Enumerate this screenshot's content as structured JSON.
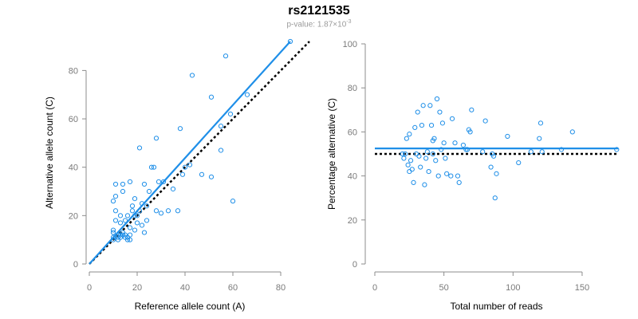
{
  "title": "rs2121535",
  "subtitle": {
    "prefix": "p-value: 1.87×10",
    "exponent": "-3"
  },
  "colors": {
    "fit_line": "#1f8fe8",
    "points": "#1f8fe8",
    "expected_line": "#000000",
    "axis": "#8c8c8c",
    "tick_label": "#7a7a7a"
  },
  "chart_data": [
    {
      "type": "scatter",
      "xlabel": "Reference allele count (A)",
      "ylabel": "Alternative allele count (C)",
      "xlim": [
        0,
        84
      ],
      "ylim": [
        0,
        92
      ],
      "xticks": [
        0,
        20,
        40,
        60,
        80
      ],
      "yticks": [
        0,
        20,
        40,
        60,
        80
      ],
      "grid": false,
      "points": [
        [
          10,
          14
        ],
        [
          10,
          13
        ],
        [
          10,
          11
        ],
        [
          10,
          10
        ],
        [
          10,
          26
        ],
        [
          11,
          33
        ],
        [
          11,
          28
        ],
        [
          11,
          22
        ],
        [
          11,
          18
        ],
        [
          12,
          12
        ],
        [
          12,
          11
        ],
        [
          12,
          10
        ],
        [
          13,
          11
        ],
        [
          13,
          12
        ],
        [
          13,
          20
        ],
        [
          13,
          17
        ],
        [
          14,
          13
        ],
        [
          14,
          12
        ],
        [
          14,
          30
        ],
        [
          14,
          33
        ],
        [
          15,
          11
        ],
        [
          15,
          12
        ],
        [
          15,
          18
        ],
        [
          16,
          20
        ],
        [
          16,
          11
        ],
        [
          16,
          10
        ],
        [
          17,
          34
        ],
        [
          17,
          15
        ],
        [
          17,
          12
        ],
        [
          17,
          10
        ],
        [
          18,
          24
        ],
        [
          18,
          22
        ],
        [
          19,
          27
        ],
        [
          19,
          14
        ],
        [
          19,
          20
        ],
        [
          20,
          17
        ],
        [
          20,
          20
        ],
        [
          21,
          48
        ],
        [
          21,
          22
        ],
        [
          22,
          25
        ],
        [
          22,
          16
        ],
        [
          23,
          13
        ],
        [
          23,
          33
        ],
        [
          24,
          24
        ],
        [
          24,
          18
        ],
        [
          25,
          30
        ],
        [
          26,
          40
        ],
        [
          27,
          40
        ],
        [
          28,
          22
        ],
        [
          28,
          52
        ],
        [
          29,
          34
        ],
        [
          30,
          21
        ],
        [
          31,
          34
        ],
        [
          33,
          22
        ],
        [
          35,
          31
        ],
        [
          37,
          22
        ],
        [
          38,
          56
        ],
        [
          39,
          37
        ],
        [
          40,
          40
        ],
        [
          42,
          41
        ],
        [
          43,
          78
        ],
        [
          47,
          37
        ],
        [
          51,
          36
        ],
        [
          51,
          69
        ],
        [
          55,
          47
        ],
        [
          55,
          57
        ],
        [
          57,
          86
        ],
        [
          59,
          62
        ],
        [
          60,
          26
        ],
        [
          66,
          70
        ],
        [
          84,
          92
        ]
      ],
      "fit_line": {
        "x": [
          0,
          84
        ],
        "y": [
          0,
          92
        ]
      },
      "expected_line": {
        "x": [
          0,
          92
        ],
        "y": [
          0,
          92
        ]
      }
    },
    {
      "type": "scatter",
      "xlabel": "Total number of reads",
      "ylabel": "Percentage alternative (C)",
      "xlim": [
        0,
        176
      ],
      "ylim": [
        0,
        100
      ],
      "xticks": [
        0,
        50,
        100,
        150
      ],
      "yticks": [
        0,
        20,
        40,
        60,
        80,
        100
      ],
      "grid": false,
      "points": [
        [
          20,
          50
        ],
        [
          21,
          48
        ],
        [
          22,
          50
        ],
        [
          23,
          57
        ],
        [
          24,
          45
        ],
        [
          25,
          42
        ],
        [
          25,
          59
        ],
        [
          26,
          47
        ],
        [
          27,
          43
        ],
        [
          28,
          37
        ],
        [
          29,
          62
        ],
        [
          30,
          50
        ],
        [
          31,
          69
        ],
        [
          32,
          49
        ],
        [
          33,
          44
        ],
        [
          34,
          63
        ],
        [
          35,
          72
        ],
        [
          36,
          36
        ],
        [
          37,
          48
        ],
        [
          38,
          51
        ],
        [
          39,
          42
        ],
        [
          40,
          72
        ],
        [
          41,
          63
        ],
        [
          42,
          50
        ],
        [
          42,
          56
        ],
        [
          43,
          57
        ],
        [
          44,
          47
        ],
        [
          45,
          75
        ],
        [
          46,
          40
        ],
        [
          47,
          69
        ],
        [
          48,
          52
        ],
        [
          49,
          64
        ],
        [
          50,
          55
        ],
        [
          51,
          48
        ],
        [
          52,
          41
        ],
        [
          55,
          40
        ],
        [
          56,
          66
        ],
        [
          58,
          55
        ],
        [
          60,
          40
        ],
        [
          61,
          37
        ],
        [
          64,
          54
        ],
        [
          66,
          52
        ],
        [
          67,
          52
        ],
        [
          68,
          61
        ],
        [
          69,
          60
        ],
        [
          70,
          70
        ],
        [
          78,
          51
        ],
        [
          80,
          65
        ],
        [
          84,
          44
        ],
        [
          85,
          50
        ],
        [
          86,
          49
        ],
        [
          87,
          30
        ],
        [
          88,
          41
        ],
        [
          96,
          58
        ],
        [
          104,
          46
        ],
        [
          113,
          51
        ],
        [
          119,
          57
        ],
        [
          120,
          64
        ],
        [
          121,
          51
        ],
        [
          135,
          52
        ],
        [
          143,
          60
        ],
        [
          175,
          52
        ]
      ],
      "fit_line": {
        "x": [
          0,
          176
        ],
        "y": [
          52.5,
          52.5
        ]
      },
      "expected_line": {
        "x": [
          0,
          176
        ],
        "y": [
          50,
          50
        ]
      }
    }
  ]
}
